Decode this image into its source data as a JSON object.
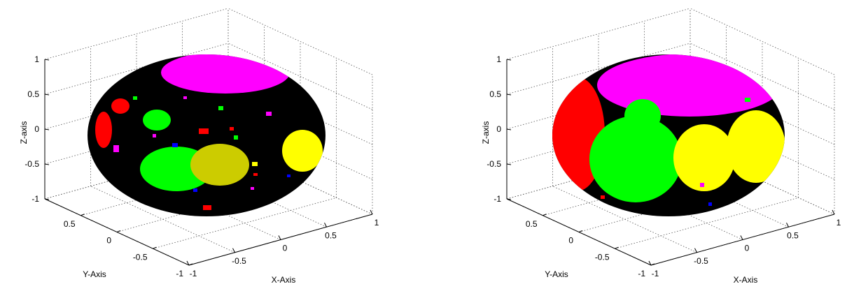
{
  "chart_data": [
    {
      "type": "scatter",
      "subtype": "3d-surface-sphere-segmentation",
      "title": "",
      "xlabel": "X-Axis",
      "ylabel": "Y-Axis",
      "zlabel": "Z-axis",
      "xlim": [
        -1,
        1
      ],
      "ylim": [
        -1,
        1
      ],
      "zlim": [
        -1,
        1
      ],
      "x_ticks": [
        "-1",
        "-0.5",
        "0",
        "0.5",
        "1"
      ],
      "y_ticks": [
        "-1",
        "-0.5",
        "0",
        "0.5"
      ],
      "z_ticks": [
        "-1",
        "-0.5",
        "0",
        "0.5",
        "1"
      ],
      "grid": true,
      "background_color": "#000000",
      "region_colors": [
        "#ff00ff",
        "#ff0000",
        "#00ff00",
        "#ffff00",
        "#cccc00",
        "#0000ff"
      ]
    },
    {
      "type": "scatter",
      "subtype": "3d-surface-sphere-segmentation",
      "title": "",
      "xlabel": "X-Axis",
      "ylabel": "Y-Axis",
      "zlabel": "Z-axis",
      "xlim": [
        -1,
        1
      ],
      "ylim": [
        -1,
        1
      ],
      "zlim": [
        -1,
        1
      ],
      "x_ticks": [
        "-1",
        "-0.5",
        "0",
        "0.5",
        "1"
      ],
      "y_ticks": [
        "-1",
        "-0.5",
        "0",
        "0.5"
      ],
      "z_ticks": [
        "-1",
        "-0.5",
        "0",
        "0.5",
        "1"
      ],
      "grid": true,
      "background_color": "#000000",
      "region_colors": [
        "#ff00ff",
        "#ff0000",
        "#00ff00",
        "#ffff00",
        "#0000ff"
      ]
    }
  ]
}
